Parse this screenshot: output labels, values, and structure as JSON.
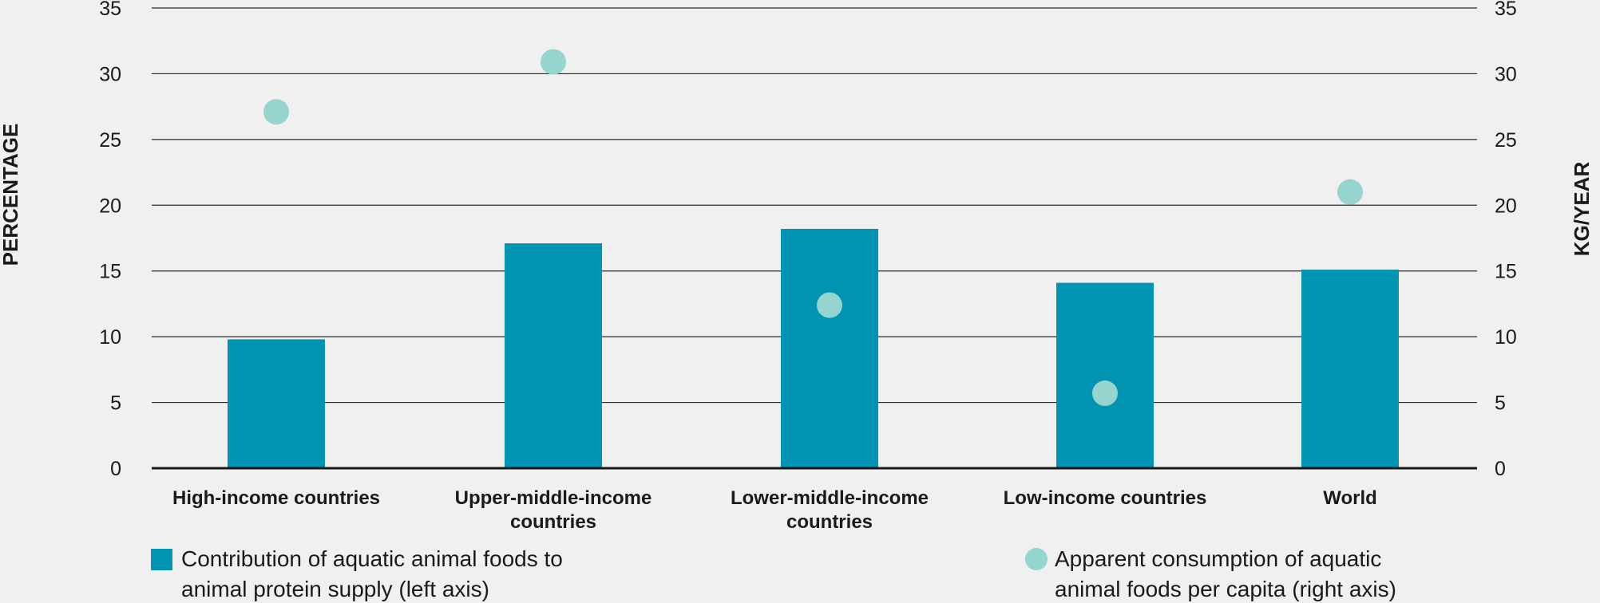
{
  "chart_data": {
    "type": "bar",
    "categories": [
      "High-income countries",
      "Upper-middle-income countries",
      "Lower-middle-income countries",
      "Low-income countries",
      "World"
    ],
    "category_label_lines": [
      [
        "High-income countries"
      ],
      [
        "Upper-middle-income",
        "countries"
      ],
      [
        "Lower-middle-income",
        "countries"
      ],
      [
        "Low-income countries"
      ],
      [
        "World"
      ]
    ],
    "series": [
      {
        "name": "Contribution of aquatic animal foods to animal protein supply (left axis)",
        "legend_lines": [
          "Contribution of aquatic animal foods to",
          "animal protein supply (left axis)"
        ],
        "type": "bar",
        "axis": "left",
        "color": "#0093b2",
        "values": [
          9.8,
          17.1,
          18.2,
          14.1,
          15.1
        ]
      },
      {
        "name": "Apparent consumption of aquatic animal foods per capita (right axis)",
        "legend_lines": [
          "Apparent consumption of aquatic",
          "animal foods per capita (right axis)"
        ],
        "type": "scatter",
        "axis": "right",
        "color": "#95d4cf",
        "values": [
          27.1,
          30.9,
          12.4,
          5.7,
          21.0
        ]
      }
    ],
    "ylabel": "PERCENTAGE",
    "ylabel_right": "KG/YEAR",
    "ylim": [
      0,
      35
    ],
    "ylim_right": [
      0,
      35
    ],
    "yticks": [
      0,
      5,
      10,
      15,
      20,
      25,
      30,
      35
    ],
    "grid": true,
    "legend_position": "bottom"
  }
}
